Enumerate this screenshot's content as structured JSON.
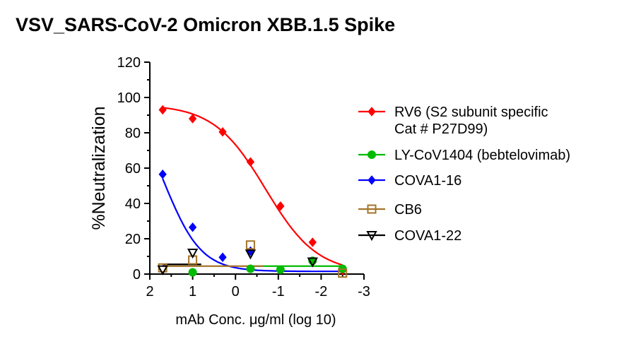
{
  "chart_data": {
    "type": "scatter",
    "title": "VSV_SARS-CoV-2 Omicron XBB.1.5 Spike",
    "xlabel": "mAb Conc. μg/ml (log 10)",
    "ylabel": "%Neutralization",
    "xlim": [
      2,
      -3
    ],
    "ylim": [
      0,
      120
    ],
    "x_reversed": true,
    "xticks": [
      2,
      1,
      0,
      -1,
      -2,
      -3
    ],
    "xtick_labels": [
      "2",
      "1",
      "0",
      "-1",
      "-2",
      "-3"
    ],
    "yticks": [
      0,
      20,
      40,
      60,
      80,
      100,
      120
    ],
    "ytick_labels": [
      "0",
      "20",
      "40",
      "60",
      "80",
      "100",
      "120"
    ],
    "legend_position": "right",
    "series": [
      {
        "name": "RV6 (S2 subunit specific Cat # P27D99)",
        "legend_lines": [
          "RV6 (S2 subunit specific",
          "Cat # P27D99)"
        ],
        "color": "#ff0000",
        "marker": "diamond-filled",
        "x": [
          1.7,
          1.0,
          0.3,
          -0.35,
          -1.05,
          -1.8,
          -2.5
        ],
        "y": [
          93,
          88,
          80.5,
          63.5,
          38.5,
          18,
          2
        ],
        "fit": {
          "type": "sigmoid",
          "bottom": 0.5,
          "top": 96,
          "logIC50": -0.7,
          "hill": 0.72
        }
      },
      {
        "name": "LY-CoV1404 (bebtelovimab)",
        "legend_lines": [
          "LY-CoV1404 (bebtelovimab)"
        ],
        "color": "#00bb00",
        "marker": "circle-filled",
        "x": [
          1.0,
          -0.35,
          -1.05,
          -1.8,
          -2.5
        ],
        "y": [
          1,
          3,
          2.5,
          7.5,
          3
        ],
        "fit": {
          "type": "flat",
          "value": 4.5,
          "x_from": -0.35,
          "x_to": -2.5
        }
      },
      {
        "name": "COVA1-16",
        "legend_lines": [
          "COVA1-16"
        ],
        "color": "#0000ff",
        "marker": "diamond-filled",
        "x": [
          1.7,
          1.0,
          0.3,
          -0.35
        ],
        "y": [
          56.5,
          26.5,
          9.5,
          13
        ],
        "fit": {
          "type": "sigmoid",
          "bottom": 1.5,
          "top": 103,
          "logIC50": 1.67,
          "hill": 1.0
        }
      },
      {
        "name": "CB6",
        "legend_lines": [
          "CB6"
        ],
        "color": "#a5742a",
        "marker": "square-open",
        "x": [
          1.7,
          1.0,
          -0.35,
          -2.5
        ],
        "y": [
          3.5,
          8,
          16.5,
          0.5
        ],
        "fit": {
          "type": "flat",
          "value": 4.5,
          "x_from": 1.7,
          "x_to": -0.65
        }
      },
      {
        "name": "COVA1-22",
        "legend_lines": [
          "COVA1-22"
        ],
        "color": "#000000",
        "marker": "triangle-down-open",
        "x": [
          1.7,
          1.0,
          -0.35,
          -1.8
        ],
        "y": [
          2.5,
          12,
          11.5,
          7
        ],
        "fit": {
          "type": "flat",
          "value": 5.5,
          "x_from": 1.7,
          "x_to": 0.8
        }
      }
    ]
  }
}
